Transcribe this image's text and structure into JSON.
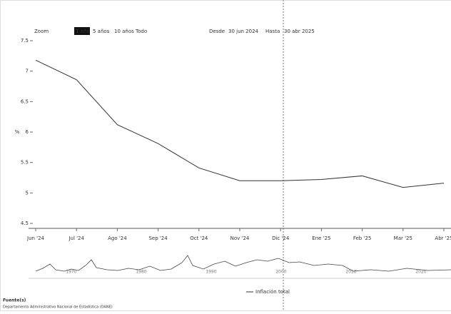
{
  "toolbar": {
    "zoom": "Zoom",
    "buttons": [
      "1 año",
      "5 años",
      "10 años",
      "Todo"
    ],
    "from_label": "Desde",
    "from": "30 jun 2024",
    "to_label": "Hasta",
    "to": "30 abr 2025"
  },
  "chart_data": {
    "type": "line",
    "y_label": "%",
    "categories": [
      "Jun '24",
      "Jul '24",
      "Ago '24",
      "Sep '24",
      "Oct '24",
      "Nov '24",
      "Dic '24",
      "Ene '25",
      "Feb '25",
      "Mar '25",
      "Abr '25"
    ],
    "series": [
      {
        "name": "Inflación total",
        "color": "#333333",
        "values": [
          7.18,
          6.86,
          6.12,
          5.81,
          5.41,
          5.2,
          5.2,
          5.22,
          5.28,
          5.09,
          5.16
        ]
      }
    ],
    "ylim": [
      4.5,
      7.5
    ],
    "yticks": [
      4.5,
      5,
      5.5,
      6,
      6.5,
      7,
      7.5
    ]
  },
  "navigator": {
    "labels": [
      "1970",
      "1980",
      "1990",
      "2000",
      "2010",
      "2020"
    ]
  },
  "footer": {
    "source_label": "Fuente(s)",
    "source": "Departamento Administrativo Nacional de Estadística (DANE)"
  }
}
